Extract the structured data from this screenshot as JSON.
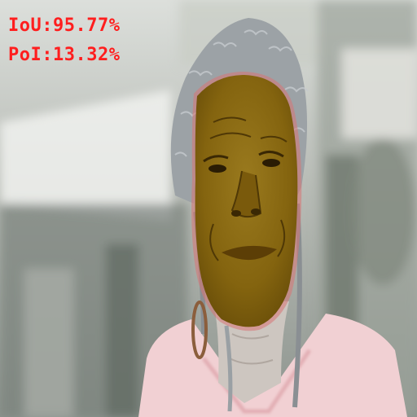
{
  "metrics": {
    "iou": "IoU:95.77%",
    "pol": "PoI:13.32%"
  },
  "colors": {
    "metric_text": "#ff1e1e",
    "mask_fill": "#8a6a12",
    "mask_edge": "#d86a6a",
    "hair": "#9aa0a4",
    "shirt": "#f2d2d4",
    "background_top": "#e4e6e2",
    "background_mid": "#aeb3ad",
    "background_dark": "#6c746e"
  },
  "scene": {
    "subject": "elderly woman face",
    "mask_overlay": "face segmentation mask"
  }
}
